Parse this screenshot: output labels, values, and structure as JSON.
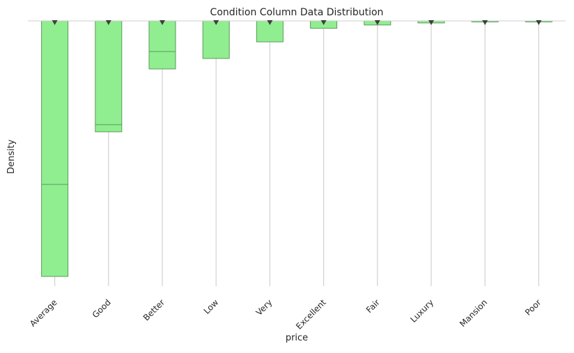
{
  "chart_data": {
    "type": "bar",
    "title": "Condition Column Data Distribution",
    "xlabel": "price",
    "ylabel": "Density",
    "orientation": "vertical-downward",
    "grid": "vertical",
    "categories": [
      "Average",
      "Good",
      "Better",
      "Low",
      "Very",
      "Excellent",
      "Fair",
      "Luxury",
      "Mansion",
      "Poor"
    ],
    "values": [
      1.0,
      0.434,
      0.188,
      0.147,
      0.082,
      0.029,
      0.016,
      0.008,
      0.003,
      0.001
    ],
    "inner_lines": [
      0.64,
      0.406,
      0.12,
      0.0,
      0.0,
      0.0,
      0.0,
      0.0,
      0.0,
      0.0
    ],
    "ylim": [
      0,
      1.0
    ],
    "colors": {
      "bar": "#90ee90",
      "edge": "#5a9a5a",
      "marker": "#3f3f3f",
      "grid": "#d0d0d0"
    },
    "marker_icon": "down-triangle-icon"
  }
}
